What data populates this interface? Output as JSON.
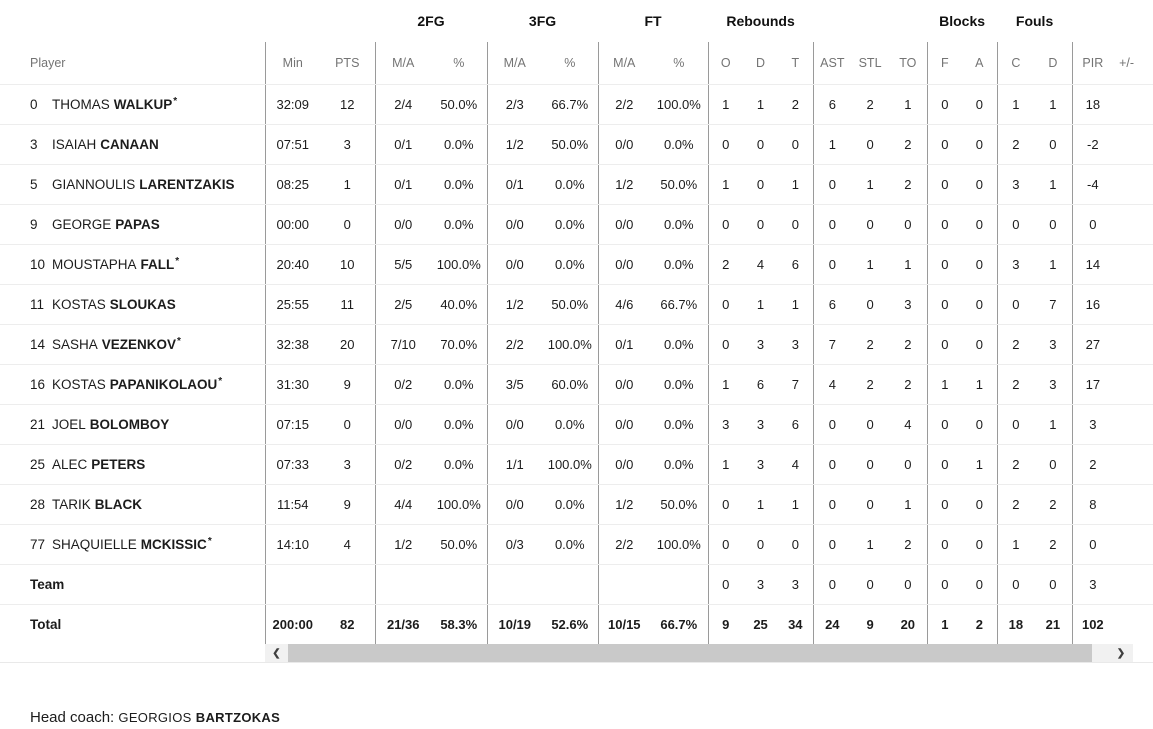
{
  "table": {
    "group_headers": [
      {
        "label": "",
        "span": 3
      },
      {
        "label": "2FG",
        "span": 2
      },
      {
        "label": "3FG",
        "span": 2
      },
      {
        "label": "FT",
        "span": 2
      },
      {
        "label": "Rebounds",
        "span": 3
      },
      {
        "label": "",
        "span": 3
      },
      {
        "label": "Blocks",
        "span": 2
      },
      {
        "label": "Fouls",
        "span": 2
      },
      {
        "label": "",
        "span": 2
      }
    ],
    "columns": [
      "Player",
      "Min",
      "PTS",
      "M/A",
      "%",
      "M/A",
      "%",
      "M/A",
      "%",
      "O",
      "D",
      "T",
      "AST",
      "STL",
      "TO",
      "F",
      "A",
      "C",
      "D",
      "PIR",
      "+/-"
    ],
    "starter_marker": "*",
    "rows": [
      {
        "number": "0",
        "first": "THOMAS",
        "last": "WALKUP",
        "starter": true,
        "stats": [
          "32:09",
          "12",
          "2/4",
          "50.0%",
          "2/3",
          "66.7%",
          "2/2",
          "100.0%",
          "1",
          "1",
          "2",
          "6",
          "2",
          "1",
          "0",
          "0",
          "1",
          "1",
          "18",
          ""
        ]
      },
      {
        "number": "3",
        "first": "ISAIAH",
        "last": "CANAAN",
        "starter": false,
        "stats": [
          "07:51",
          "3",
          "0/1",
          "0.0%",
          "1/2",
          "50.0%",
          "0/0",
          "0.0%",
          "0",
          "0",
          "0",
          "1",
          "0",
          "2",
          "0",
          "0",
          "2",
          "0",
          "-2",
          ""
        ]
      },
      {
        "number": "5",
        "first": "GIANNOULIS",
        "last": "LARENTZAKIS",
        "starter": false,
        "stats": [
          "08:25",
          "1",
          "0/1",
          "0.0%",
          "0/1",
          "0.0%",
          "1/2",
          "50.0%",
          "1",
          "0",
          "1",
          "0",
          "1",
          "2",
          "0",
          "0",
          "3",
          "1",
          "-4",
          ""
        ]
      },
      {
        "number": "9",
        "first": "GEORGE",
        "last": "PAPAS",
        "starter": false,
        "stats": [
          "00:00",
          "0",
          "0/0",
          "0.0%",
          "0/0",
          "0.0%",
          "0/0",
          "0.0%",
          "0",
          "0",
          "0",
          "0",
          "0",
          "0",
          "0",
          "0",
          "0",
          "0",
          "0",
          ""
        ]
      },
      {
        "number": "10",
        "first": "MOUSTAPHA",
        "last": "FALL",
        "starter": true,
        "stats": [
          "20:40",
          "10",
          "5/5",
          "100.0%",
          "0/0",
          "0.0%",
          "0/0",
          "0.0%",
          "2",
          "4",
          "6",
          "0",
          "1",
          "1",
          "0",
          "0",
          "3",
          "1",
          "14",
          ""
        ]
      },
      {
        "number": "11",
        "first": "KOSTAS",
        "last": "SLOUKAS",
        "starter": false,
        "stats": [
          "25:55",
          "11",
          "2/5",
          "40.0%",
          "1/2",
          "50.0%",
          "4/6",
          "66.7%",
          "0",
          "1",
          "1",
          "6",
          "0",
          "3",
          "0",
          "0",
          "0",
          "7",
          "16",
          ""
        ]
      },
      {
        "number": "14",
        "first": "SASHA",
        "last": "VEZENKOV",
        "starter": true,
        "stats": [
          "32:38",
          "20",
          "7/10",
          "70.0%",
          "2/2",
          "100.0%",
          "0/1",
          "0.0%",
          "0",
          "3",
          "3",
          "7",
          "2",
          "2",
          "0",
          "0",
          "2",
          "3",
          "27",
          ""
        ]
      },
      {
        "number": "16",
        "first": "KOSTAS",
        "last": "PAPANIKOLAOU",
        "starter": true,
        "stats": [
          "31:30",
          "9",
          "0/2",
          "0.0%",
          "3/5",
          "60.0%",
          "0/0",
          "0.0%",
          "1",
          "6",
          "7",
          "4",
          "2",
          "2",
          "1",
          "1",
          "2",
          "3",
          "17",
          ""
        ]
      },
      {
        "number": "21",
        "first": "JOEL",
        "last": "BOLOMBOY",
        "starter": false,
        "stats": [
          "07:15",
          "0",
          "0/0",
          "0.0%",
          "0/0",
          "0.0%",
          "0/0",
          "0.0%",
          "3",
          "3",
          "6",
          "0",
          "0",
          "4",
          "0",
          "0",
          "0",
          "1",
          "3",
          ""
        ]
      },
      {
        "number": "25",
        "first": "ALEC",
        "last": "PETERS",
        "starter": false,
        "stats": [
          "07:33",
          "3",
          "0/2",
          "0.0%",
          "1/1",
          "100.0%",
          "0/0",
          "0.0%",
          "1",
          "3",
          "4",
          "0",
          "0",
          "0",
          "0",
          "1",
          "2",
          "0",
          "2",
          ""
        ]
      },
      {
        "number": "28",
        "first": "TARIK",
        "last": "BLACK",
        "starter": false,
        "stats": [
          "11:54",
          "9",
          "4/4",
          "100.0%",
          "0/0",
          "0.0%",
          "1/2",
          "50.0%",
          "0",
          "1",
          "1",
          "0",
          "0",
          "1",
          "0",
          "0",
          "2",
          "2",
          "8",
          ""
        ]
      },
      {
        "number": "77",
        "first": "SHAQUIELLE",
        "last": "MCKISSIC",
        "starter": true,
        "stats": [
          "14:10",
          "4",
          "1/2",
          "50.0%",
          "0/3",
          "0.0%",
          "2/2",
          "100.0%",
          "0",
          "0",
          "0",
          "0",
          "1",
          "2",
          "0",
          "0",
          "1",
          "2",
          "0",
          ""
        ]
      },
      {
        "label": "Team",
        "type": "team",
        "stats": [
          "",
          "",
          "",
          "",
          "",
          "",
          "",
          "",
          "0",
          "3",
          "3",
          "0",
          "0",
          "0",
          "0",
          "0",
          "0",
          "0",
          "3",
          ""
        ]
      },
      {
        "label": "Total",
        "type": "total",
        "stats": [
          "200:00",
          "82",
          "21/36",
          "58.3%",
          "10/19",
          "52.6%",
          "10/15",
          "66.7%",
          "9",
          "25",
          "34",
          "24",
          "9",
          "20",
          "1",
          "2",
          "18",
          "21",
          "102",
          ""
        ]
      }
    ]
  },
  "scrollbar": {
    "left_arrow": "❮",
    "right_arrow": "❯"
  },
  "footer": {
    "head_coach_label": "Head coach:",
    "first": "GEORGIOS",
    "last": "BARTZOKAS"
  },
  "colors": {
    "text": "#1c1c1c",
    "header_text": "#747474",
    "group_separator": "#9a9a9a",
    "row_line": "#ededed",
    "scrollbar_thumb": "#c9c9c9",
    "scrollbar_track": "#f1f1f1"
  }
}
